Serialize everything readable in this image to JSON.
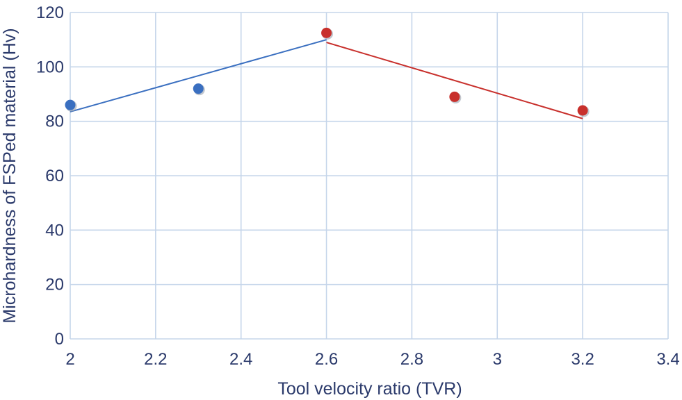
{
  "chart_data": {
    "type": "scatter",
    "title": "",
    "xlabel": "Tool velocity ratio (TVR)",
    "ylabel": "Microhardness of FSPed material (Hv)",
    "xlim": [
      2,
      3.4
    ],
    "ylim": [
      0,
      120
    ],
    "x_ticks": [
      2,
      2.2,
      2.4,
      2.6,
      2.8,
      3,
      3.2,
      3.4
    ],
    "x_tick_labels": [
      "2",
      "2.2",
      "2.4",
      "2.6",
      "2.8",
      "3",
      "3.2",
      "3.4"
    ],
    "y_ticks": [
      0,
      20,
      40,
      60,
      80,
      100,
      120
    ],
    "y_tick_labels": [
      "0",
      "20",
      "40",
      "60",
      "80",
      "100",
      "120"
    ],
    "grid": true,
    "legend": "none",
    "series": [
      {
        "color": "#3a6fc0",
        "points": [
          {
            "x": 2,
            "y": 86
          },
          {
            "x": 2.3,
            "y": 92
          }
        ],
        "trendline": [
          {
            "x": 2,
            "y": 83.5
          },
          {
            "x": 2.6,
            "y": 110
          }
        ]
      },
      {
        "color": "#c8302c",
        "points": [
          {
            "x": 2.6,
            "y": 112.5
          },
          {
            "x": 2.9,
            "y": 89
          },
          {
            "x": 3.2,
            "y": 84
          }
        ],
        "trendline": [
          {
            "x": 2.6,
            "y": 109
          },
          {
            "x": 3.2,
            "y": 81
          }
        ]
      }
    ]
  }
}
